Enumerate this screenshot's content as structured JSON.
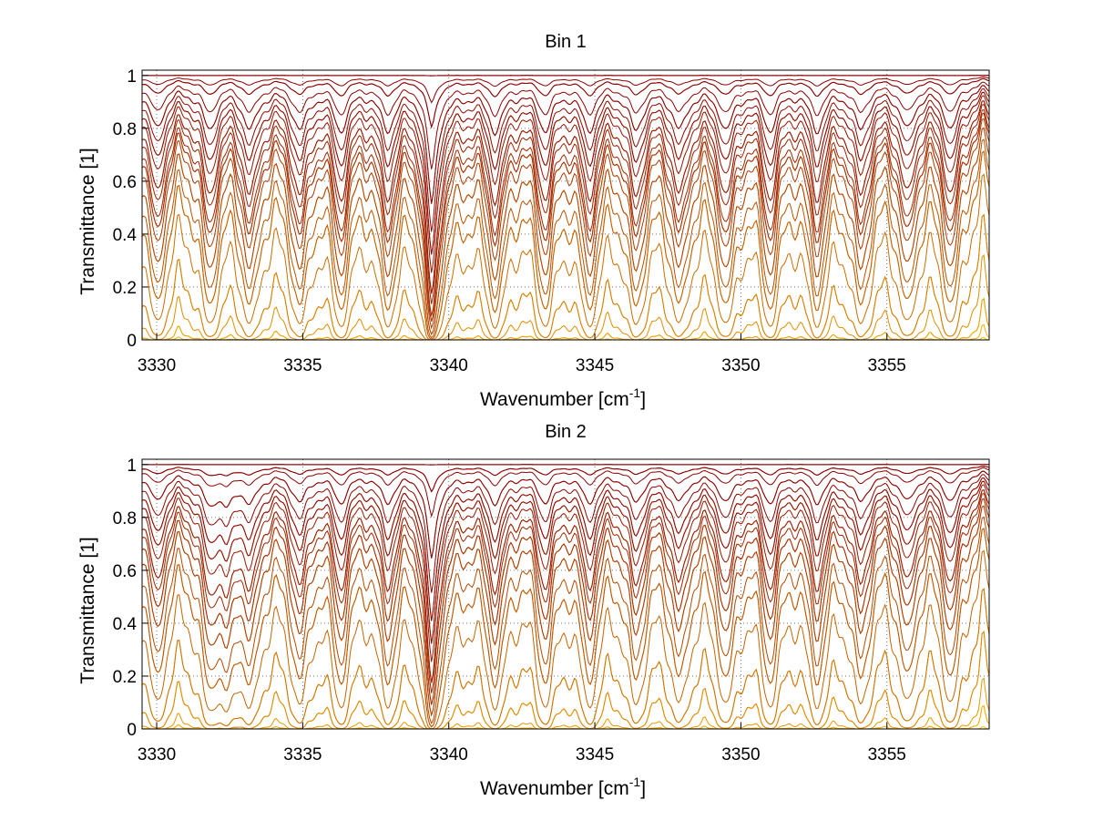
{
  "figure": {
    "panels": [
      {
        "title": "Bin 1",
        "xlabel_main": "Wavenumber [cm",
        "xlabel_sup": "-1",
        "xlabel_end": "]",
        "ylabel": "Transmittance [1]"
      },
      {
        "title": "Bin 2",
        "xlabel_main": "Wavenumber [cm",
        "xlabel_sup": "-1",
        "xlabel_end": "]",
        "ylabel": "Transmittance [1]"
      }
    ]
  },
  "chart_data": [
    {
      "type": "line",
      "title": "Bin 1",
      "xlabel": "Wavenumber [cm-1]",
      "ylabel": "Transmittance [1]",
      "xlim": [
        3329.5,
        3358.5
      ],
      "ylim": [
        0,
        1.02
      ],
      "xticks": [
        3330,
        3335,
        3340,
        3345,
        3350,
        3355
      ],
      "xtick_labels": [
        "3330",
        "3335",
        "3340",
        "3345",
        "3350",
        "3355"
      ],
      "yticks": [
        0,
        0.2,
        0.4,
        0.6,
        0.8,
        1
      ],
      "ytick_labels": [
        "0",
        "0.2",
        "0.4",
        "0.6",
        "0.8",
        "1"
      ],
      "grid": true,
      "legend": false,
      "series_count": 32,
      "baseline_levels_at_right_edge": [
        1.0,
        0.99,
        0.98,
        0.96,
        0.94,
        0.92,
        0.9,
        0.88,
        0.85,
        0.83,
        0.8,
        0.78,
        0.75,
        0.7,
        0.64,
        0.58,
        0.47,
        0.3,
        0.16,
        0.05,
        0.01,
        0.0
      ],
      "absorption_lines_x": [
        3330.0,
        3331.8,
        3333.2,
        3334.9,
        3336.3,
        3337.9,
        3339.4,
        3341.6,
        3343.3,
        3344.8,
        3346.4,
        3347.9,
        3349.5,
        3351.0,
        3352.6,
        3354.1,
        3355.7,
        3357.2
      ],
      "strongest_line_x": 3339.4,
      "line_color_range": [
        "#8b0000",
        "#ffc000"
      ]
    },
    {
      "type": "line",
      "title": "Bin 2",
      "xlabel": "Wavenumber [cm-1]",
      "ylabel": "Transmittance [1]",
      "xlim": [
        3329.5,
        3358.5
      ],
      "ylim": [
        0,
        1.02
      ],
      "xticks": [
        3330,
        3335,
        3340,
        3345,
        3350,
        3355
      ],
      "xtick_labels": [
        "3330",
        "3335",
        "3340",
        "3345",
        "3350",
        "3355"
      ],
      "yticks": [
        0,
        0.2,
        0.4,
        0.6,
        0.8,
        1
      ],
      "ytick_labels": [
        "0",
        "0.2",
        "0.4",
        "0.6",
        "0.8",
        "1"
      ],
      "grid": true,
      "legend": false,
      "series_count": 32,
      "baseline_levels_at_right_edge": [
        1.0,
        0.99,
        0.98,
        0.96,
        0.94,
        0.92,
        0.9,
        0.88,
        0.85,
        0.83,
        0.8,
        0.76,
        0.7,
        0.64,
        0.53,
        0.36,
        0.2,
        0.07,
        0.02,
        0.0
      ],
      "absorption_lines_x": [
        3330.0,
        3331.8,
        3332.4,
        3333.2,
        3334.9,
        3336.3,
        3337.9,
        3339.4,
        3341.6,
        3343.3,
        3344.8,
        3346.4,
        3347.9,
        3349.5,
        3351.0,
        3352.6,
        3354.1,
        3355.7,
        3357.2
      ],
      "strongest_line_x": 3339.4,
      "line_color_range": [
        "#8b0000",
        "#ffc000"
      ]
    }
  ]
}
